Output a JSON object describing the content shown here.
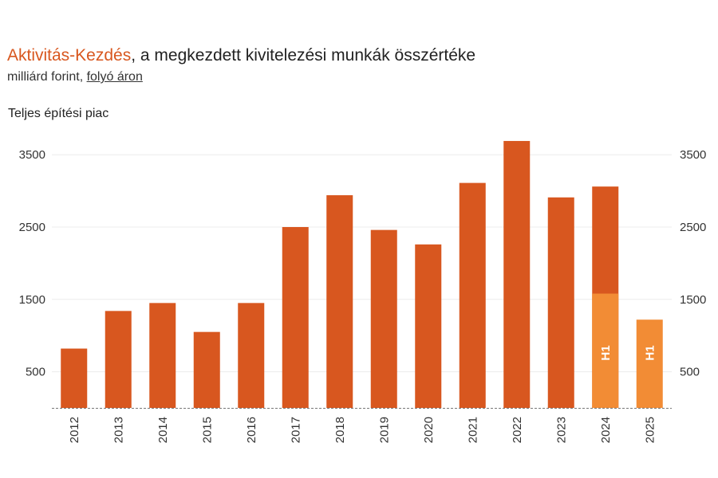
{
  "header": {
    "brand": "Aktivitás-Kezdés",
    "title_rest": ", a megkezdett kivitelezési munkák összértéke",
    "subtitle_prefix": "milliárd forint, ",
    "subtitle_link": "folyó áron",
    "section_label": "Teljes építési piac"
  },
  "chart_data": {
    "type": "bar",
    "title": "Aktivitás-Kezdés, a megkezdett kivitelezési munkák összértéke",
    "subtitle": "milliárd forint, folyó áron",
    "panel_label": "Teljes építési piac",
    "categories": [
      "2012",
      "2013",
      "2014",
      "2015",
      "2016",
      "2017",
      "2018",
      "2019",
      "2020",
      "2021",
      "2022",
      "2023",
      "2024",
      "2025"
    ],
    "series": [
      {
        "values": [
          820,
          1340,
          1450,
          1050,
          1450,
          2500,
          2940,
          2460,
          2260,
          3110,
          3690,
          2910,
          3060,
          null
        ],
        "color": "#d8571f"
      },
      {
        "values": [
          null,
          null,
          null,
          null,
          null,
          null,
          null,
          null,
          null,
          null,
          null,
          null,
          1580,
          1220
        ],
        "color": "#f28c35"
      }
    ],
    "bar_labels": [
      {
        "category": "2024",
        "text": "H1"
      },
      {
        "category": "2025",
        "text": "H1"
      }
    ],
    "y_ticks": [
      500,
      1500,
      2500,
      3500
    ],
    "ylim": [
      0,
      3800
    ],
    "secondary_y_axis": "mirrored",
    "grid": true,
    "baseline": "dashed"
  }
}
